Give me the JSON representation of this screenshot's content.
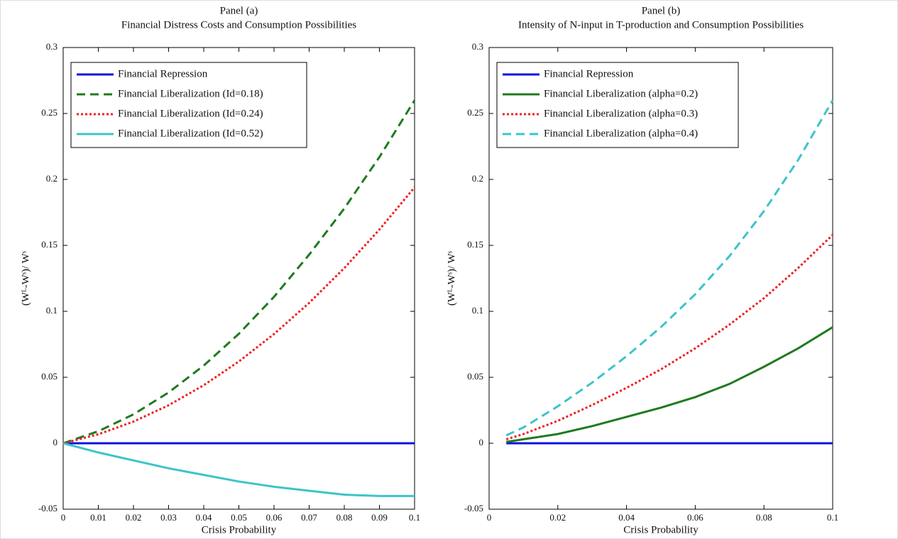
{
  "chart_data": [
    {
      "type": "line",
      "title": "Panel (a)",
      "subtitle": "Financial Distress Costs and Consumption Possibilities",
      "x_label": "Crisis Probability",
      "y_label": "(Wᴸ-Wˢ)/ Wˢ",
      "x": [
        0,
        0.01,
        0.02,
        0.03,
        0.04,
        0.05,
        0.06,
        0.07,
        0.08,
        0.09,
        0.1
      ],
      "series": [
        {
          "name": "Financial Repression",
          "color": "#1010e0",
          "dash": "solid",
          "values": [
            0,
            0,
            0,
            0,
            0,
            0,
            0,
            0,
            0,
            0,
            0
          ]
        },
        {
          "name": "Financial Liberalization (Id=0.18)",
          "color": "#1f7a1f",
          "dash": "dashed",
          "values": [
            0,
            0.0091,
            0.0219,
            0.0385,
            0.0589,
            0.083,
            0.111,
            0.143,
            0.178,
            0.217,
            0.26
          ]
        },
        {
          "name": "Financial Liberalization (Id=0.24)",
          "color": "#ee2020",
          "dash": "dotted",
          "values": [
            0,
            0.0068,
            0.0164,
            0.0288,
            0.044,
            0.062,
            0.0828,
            0.1064,
            0.1328,
            0.162,
            0.194
          ]
        },
        {
          "name": "Financial Liberalization (Id=0.52)",
          "color": "#3cc4c8",
          "dash": "solid",
          "values": [
            0,
            -0.007,
            -0.013,
            -0.019,
            -0.024,
            -0.029,
            -0.033,
            -0.036,
            -0.039,
            -0.04,
            -0.04
          ]
        }
      ],
      "xlim": [
        0,
        0.1
      ],
      "xticks": [
        0,
        0.01,
        0.02,
        0.03,
        0.04,
        0.05,
        0.06,
        0.07,
        0.08,
        0.09,
        0.1
      ],
      "ylim": [
        -0.05,
        0.3
      ],
      "yticks": [
        -0.05,
        0,
        0.05,
        0.1,
        0.15,
        0.2,
        0.25,
        0.3
      ],
      "legend": "upper left"
    },
    {
      "type": "line",
      "title": "Panel (b)",
      "subtitle": "Intensity of N-input in T-production and Consumption Possibilities",
      "x_label": "Crisis Probability",
      "y_label": "(Wᴸ-Wˢ)/ Wˢ",
      "x": [
        0.005,
        0.01,
        0.02,
        0.03,
        0.04,
        0.05,
        0.06,
        0.07,
        0.08,
        0.09,
        0.1
      ],
      "series": [
        {
          "name": "Financial Repression",
          "color": "#1010e0",
          "dash": "solid",
          "values": [
            0,
            0,
            0,
            0,
            0,
            0,
            0,
            0,
            0,
            0,
            0
          ]
        },
        {
          "name": "Financial Liberalization (alpha=0.2)",
          "color": "#1f7a1f",
          "dash": "solid",
          "values": [
            0.001,
            0.003,
            0.007,
            0.013,
            0.02,
            0.027,
            0.035,
            0.045,
            0.058,
            0.072,
            0.088
          ]
        },
        {
          "name": "Financial Liberalization (alpha=0.3)",
          "color": "#ee2020",
          "dash": "dotted",
          "values": [
            0.003,
            0.007,
            0.017,
            0.029,
            0.042,
            0.056,
            0.072,
            0.09,
            0.11,
            0.133,
            0.158
          ]
        },
        {
          "name": "Financial Liberalization (alpha=0.4)",
          "color": "#3cc4c8",
          "dash": "dashed",
          "values": [
            0.006,
            0.012,
            0.028,
            0.046,
            0.066,
            0.088,
            0.113,
            0.142,
            0.176,
            0.215,
            0.26
          ]
        }
      ],
      "xlim": [
        0,
        0.1
      ],
      "xticks": [
        0,
        0.02,
        0.04,
        0.06,
        0.08,
        0.1
      ],
      "ylim": [
        -0.05,
        0.3
      ],
      "yticks": [
        -0.05,
        0,
        0.05,
        0.1,
        0.15,
        0.2,
        0.25,
        0.3
      ],
      "legend": "upper left"
    }
  ]
}
